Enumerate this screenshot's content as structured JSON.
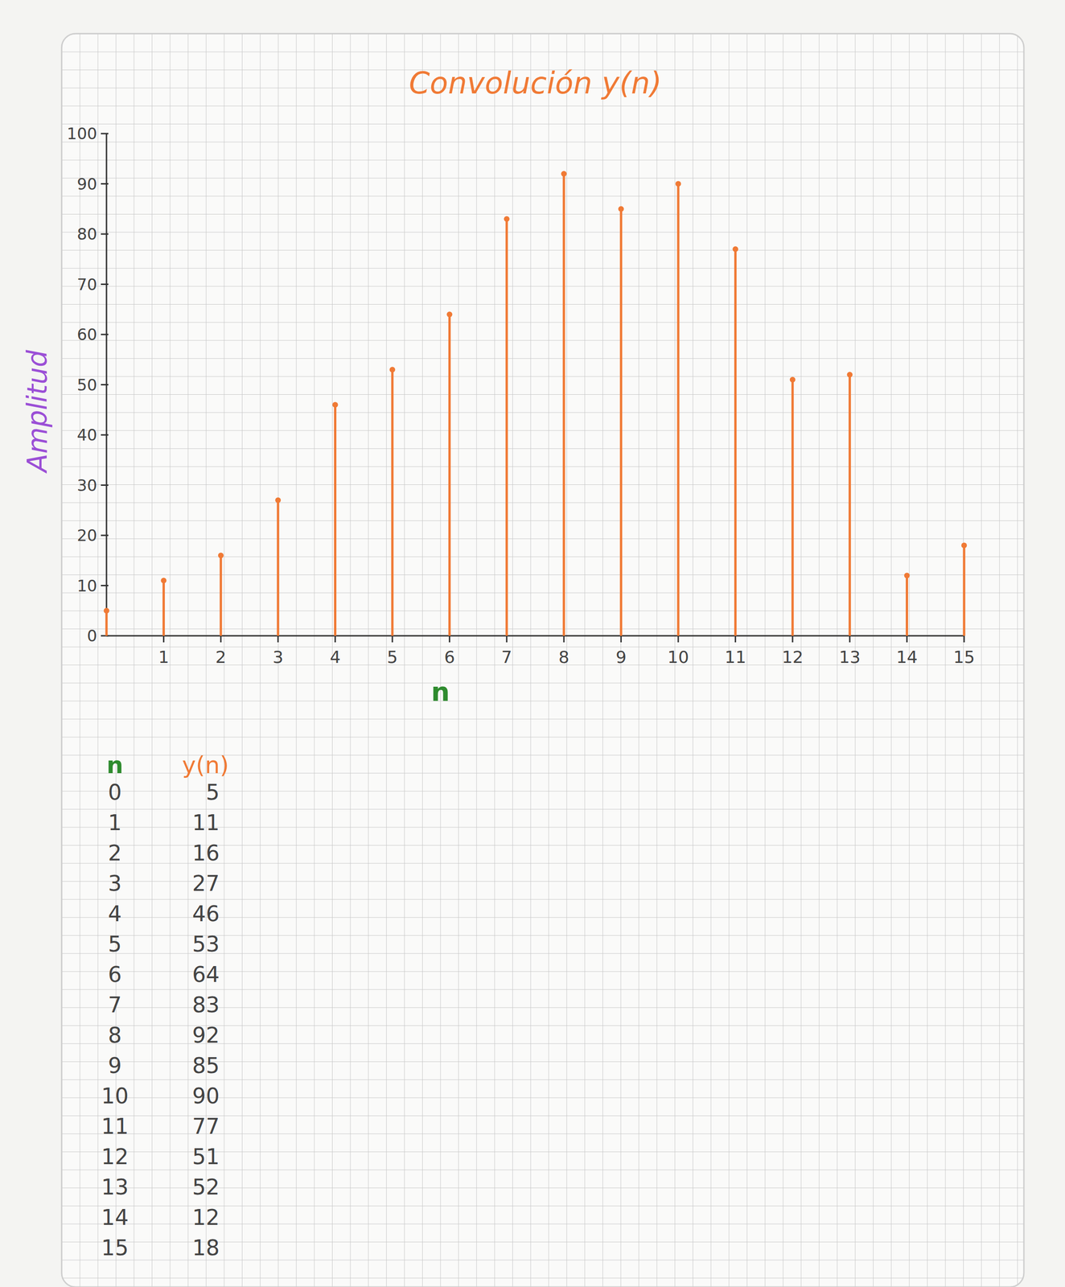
{
  "chart_data": {
    "type": "stem",
    "title": "Convolución y(n)",
    "x_label": "n",
    "y_label": "Amplitud",
    "x": [
      0,
      1,
      2,
      3,
      4,
      5,
      6,
      7,
      8,
      9,
      10,
      11,
      12,
      13,
      14,
      15
    ],
    "values": [
      5,
      11,
      16,
      27,
      46,
      53,
      64,
      83,
      92,
      85,
      90,
      77,
      51,
      52,
      12,
      18
    ],
    "color": "#f07a35",
    "xlim": [
      0,
      15
    ],
    "xticks": [
      1,
      2,
      3,
      4,
      5,
      6,
      7,
      8,
      9,
      10,
      11,
      12,
      13,
      14,
      15
    ],
    "ylim": [
      0,
      100
    ],
    "yticks": [
      0,
      10,
      20,
      30,
      40,
      50,
      60,
      70,
      80,
      90,
      100
    ],
    "grid": false
  },
  "table": {
    "header": [
      "n",
      "y(n)"
    ]
  }
}
